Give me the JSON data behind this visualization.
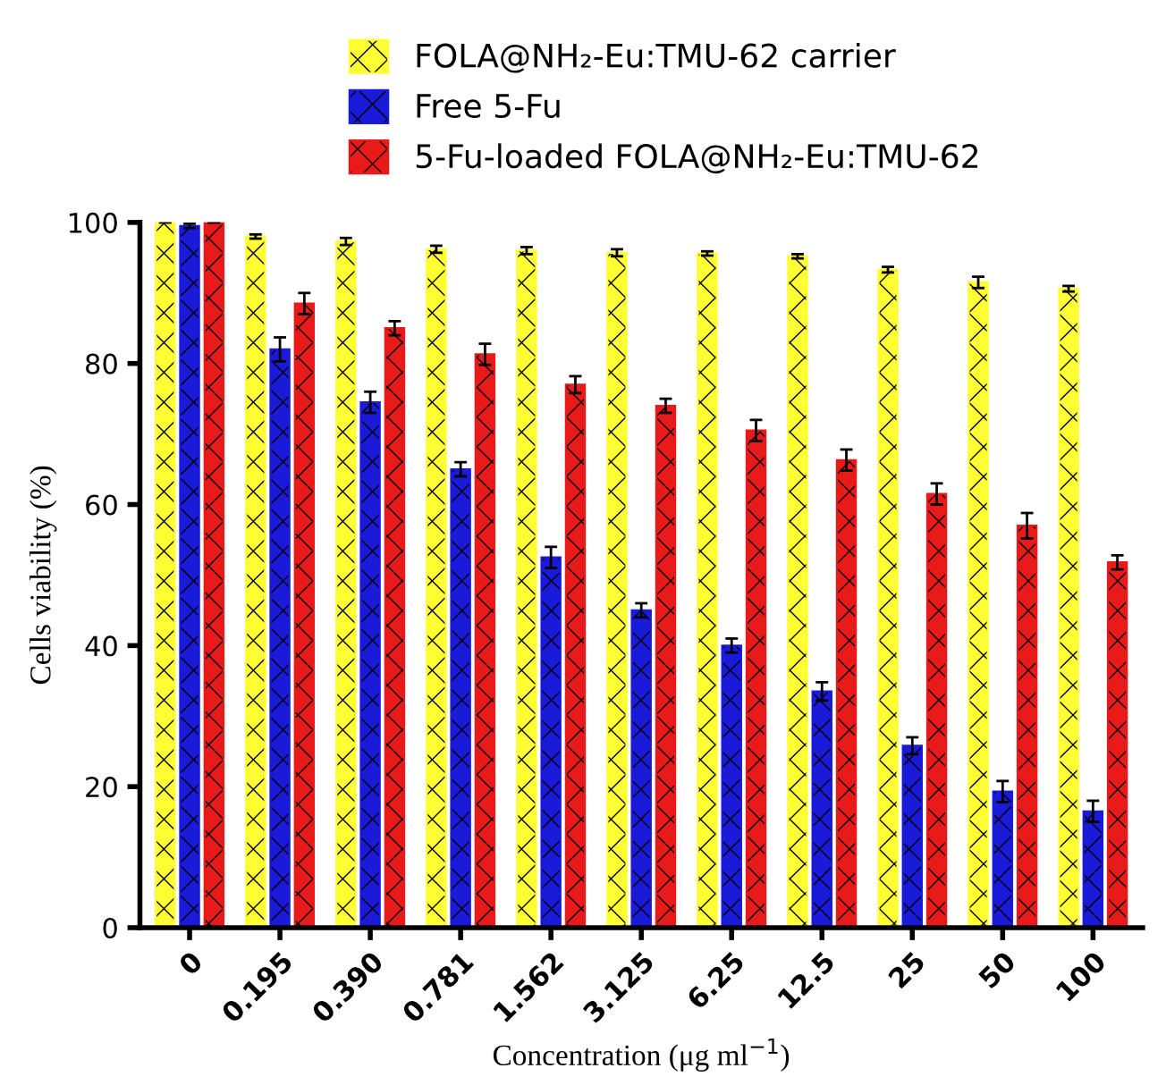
{
  "chart_data": {
    "type": "bar",
    "xlabel": "Concentration (μg ml$^{−1}$)",
    "ylabel": "Cells viability (%)",
    "categories": [
      "0",
      "0.195",
      "0.390",
      "0.781",
      "1.562",
      "3.125",
      "6.25",
      "12.5",
      "25",
      "50",
      "100"
    ],
    "series": [
      {
        "name": "FOLA@NH₂-Eu:TMU-62 carrier",
        "color": "#ffff33",
        "values": [
          100,
          98,
          97.3,
          96.2,
          96,
          95.7,
          95.6,
          95.2,
          93.3,
          91.5,
          90.6
        ],
        "errors": [
          0,
          0.3,
          0.5,
          0.5,
          0.5,
          0.5,
          0.3,
          0.3,
          0.4,
          0.8,
          0.4
        ]
      },
      {
        "name": "Free 5-Fu",
        "color": "#1a1ad9",
        "values": [
          99.5,
          82,
          74.5,
          65,
          52.5,
          45,
          40,
          33.5,
          25.8,
          19.3,
          16.5
        ],
        "errors": [
          0.3,
          1.7,
          1.5,
          1,
          1.5,
          1,
          1,
          1.3,
          1.2,
          1.5,
          1.5
        ]
      },
      {
        "name": "5-Fu-loaded FOLA@NH₂-Eu:TMU-62",
        "color": "#e81a1a",
        "values": [
          100,
          88.5,
          85,
          81.3,
          77,
          74,
          70.5,
          66.3,
          61.5,
          57,
          51.8
        ],
        "errors": [
          0,
          1.5,
          1,
          1.5,
          1.2,
          1,
          1.5,
          1.5,
          1.5,
          1.8,
          1
        ]
      }
    ],
    "ylim": [
      0,
      100
    ],
    "yticks": [
      0,
      20,
      40,
      60,
      80,
      100
    ],
    "legend": "top",
    "grid": false
  }
}
